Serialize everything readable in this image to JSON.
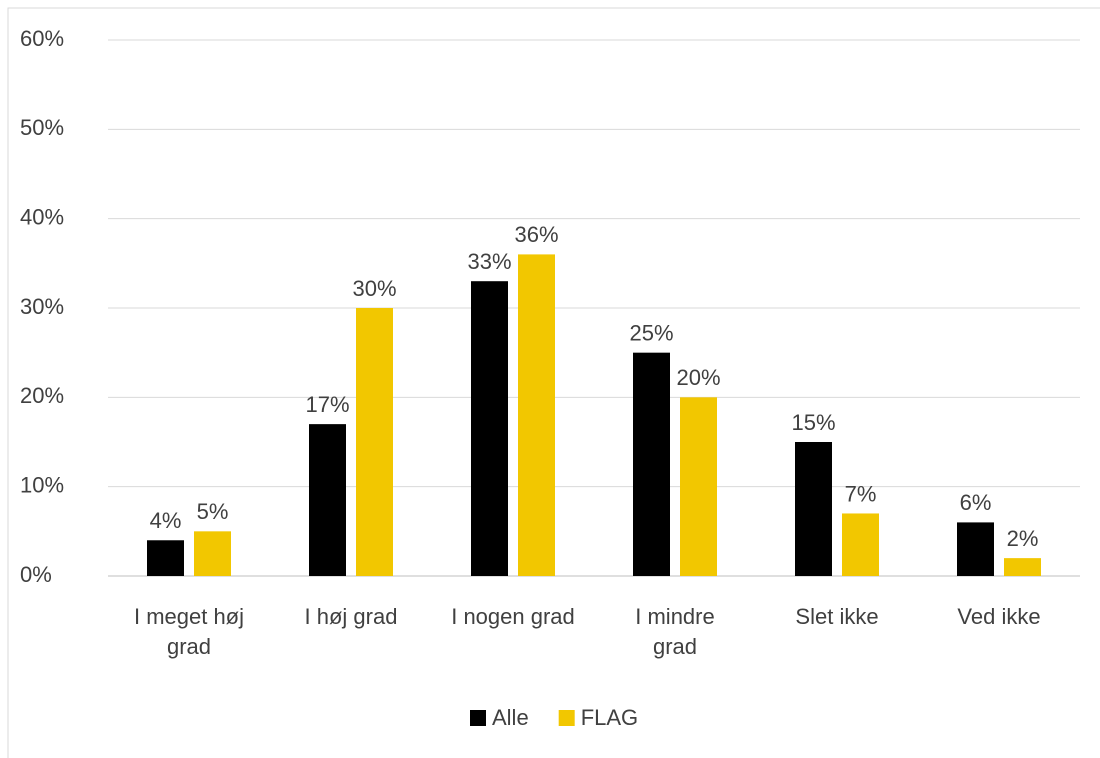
{
  "chart_data": {
    "type": "bar",
    "categories": [
      "I meget høj grad",
      "I høj grad",
      "I nogen grad",
      "I mindre grad",
      "Slet ikke",
      "Ved ikke"
    ],
    "series": [
      {
        "name": "Alle",
        "color": "#000000",
        "values": [
          4,
          17,
          33,
          25,
          15,
          6
        ],
        "value_labels": [
          "4%",
          "17%",
          "33%",
          "25%",
          "15%",
          "6%"
        ]
      },
      {
        "name": "FLAG",
        "color": "#f2c700",
        "values": [
          5,
          30,
          36,
          20,
          7,
          2
        ],
        "value_labels": [
          "5%",
          "30%",
          "36%",
          "20%",
          "7%",
          "2%"
        ]
      }
    ],
    "ylim": [
      0,
      60
    ],
    "yticks": [
      {
        "value": 0,
        "label": "0%"
      },
      {
        "value": 10,
        "label": "10%"
      },
      {
        "value": 20,
        "label": "20%"
      },
      {
        "value": 30,
        "label": "30%"
      },
      {
        "value": 40,
        "label": "40%"
      },
      {
        "value": 50,
        "label": "50%"
      },
      {
        "value": 60,
        "label": "60%"
      }
    ],
    "grid": true,
    "legend": "bottom"
  }
}
